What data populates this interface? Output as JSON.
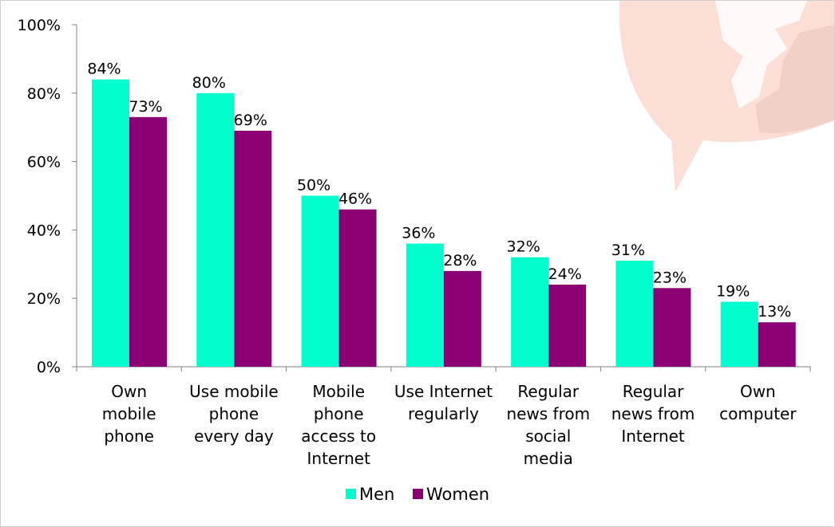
{
  "chart_data": {
    "type": "bar",
    "categories": [
      [
        "Own",
        "mobile",
        "phone"
      ],
      [
        "Use mobile",
        "phone",
        "every day"
      ],
      [
        "Mobile",
        "phone",
        "access to",
        "Internet"
      ],
      [
        "Use Internet",
        "regularly"
      ],
      [
        "Regular",
        "news from",
        "social",
        "media"
      ],
      [
        "Regular",
        "news from",
        "Internet"
      ],
      [
        "Own",
        "computer"
      ]
    ],
    "series": [
      {
        "name": "Men",
        "color": "#00FFCC",
        "values": [
          84,
          80,
          50,
          36,
          32,
          31,
          19
        ],
        "labels": [
          "84%",
          "80%",
          "50%",
          "36%",
          "32%",
          "31%",
          "19%"
        ]
      },
      {
        "name": "Women",
        "color": "#8B0073",
        "values": [
          73,
          69,
          46,
          28,
          24,
          23,
          13
        ],
        "labels": [
          "73%",
          "69%",
          "46%",
          "28%",
          "24%",
          "23%",
          "13%"
        ]
      }
    ],
    "yticks": [
      "0%",
      "20%",
      "40%",
      "60%",
      "80%",
      "100%"
    ],
    "ylim": [
      0,
      100
    ],
    "grid": false,
    "legend_position": "bottom",
    "background_decoration": "speech-bubble-map-logo",
    "decoration_color": "#F6B8A4"
  }
}
